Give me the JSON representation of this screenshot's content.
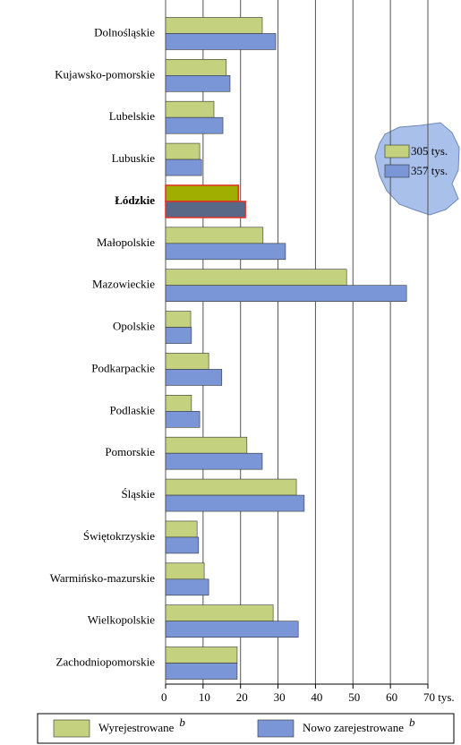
{
  "chart_data": {
    "type": "bar",
    "orientation": "horizontal",
    "categories": [
      "Dolnośląskie",
      "Kujawsko-pomorskie",
      "Lubelskie",
      "Lubuskie",
      "Łódzkie",
      "Małopolskie",
      "Mazowieckie",
      "Opolskie",
      "Podkarpackie",
      "Podlaskie",
      "Pomorskie",
      "Śląskie",
      "Świętokrzyskie",
      "Warmińsko-mazurskie",
      "Wielkopolskie",
      "Zachodniopomorskie"
    ],
    "series": [
      {
        "name": "Wyrejestrowane",
        "color": "#c4d27f",
        "highlight_color": "#9fae00",
        "values": [
          25.8,
          16.2,
          12.9,
          9.1,
          19.4,
          26.0,
          48.3,
          6.7,
          11.5,
          6.9,
          21.7,
          34.9,
          8.4,
          10.3,
          28.7,
          19.1
        ]
      },
      {
        "name": "Nowo zarejestrowane",
        "color": "#7b96d6",
        "highlight_color": "#5a6888",
        "values": [
          29.4,
          17.2,
          15.3,
          9.6,
          21.3,
          32.0,
          64.3,
          6.9,
          15.0,
          9.1,
          25.8,
          37.0,
          8.8,
          11.5,
          35.4,
          19.1
        ]
      }
    ],
    "highlight": "Łódzkie",
    "highlight_outline": "#e03020",
    "footnote": "b",
    "map_labels": [
      "305 tys.",
      "357 tys."
    ],
    "xlim": [
      0,
      70
    ],
    "xticks": [
      0,
      10,
      20,
      30,
      40,
      50,
      60,
      {
        "value": 70,
        "label": "70 tys."
      }
    ],
    "grid": true
  }
}
